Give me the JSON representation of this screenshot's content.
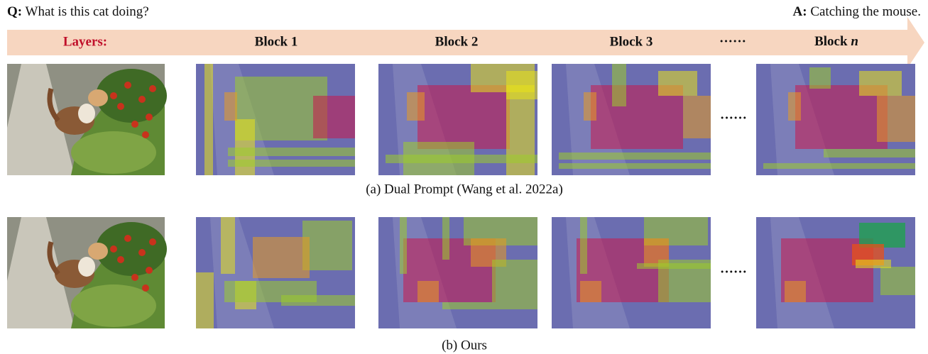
{
  "question": {
    "label": "Q:",
    "text": "What is this cat doing?"
  },
  "answer": {
    "label": "A:",
    "text": "Catching the mouse."
  },
  "header": {
    "label": "Layers:",
    "blocks": [
      "Block 1",
      "Block 2",
      "Block 3"
    ],
    "ellipsis": "······",
    "last_block": {
      "text": "Block",
      "index": "n"
    }
  },
  "rows": [
    {
      "caption": "(a) Dual Prompt (Wang et al. 2022a)",
      "ellipsis": "······"
    },
    {
      "caption": "(b) Ours",
      "ellipsis": "······"
    }
  ]
}
